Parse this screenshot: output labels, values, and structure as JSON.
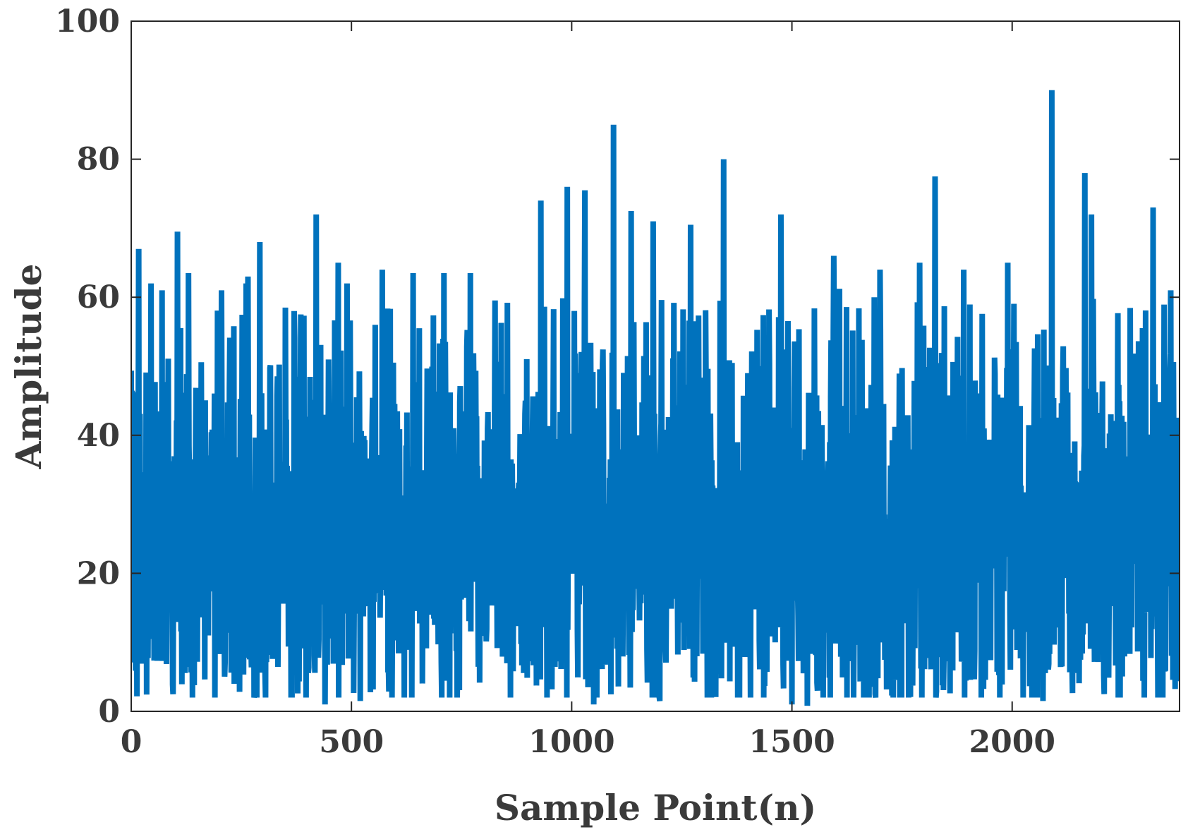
{
  "chart_data": {
    "type": "line",
    "title": "",
    "xlabel": "Sample Point(n)",
    "ylabel": "Amplitude",
    "xlim": [
      0,
      2380
    ],
    "ylim": [
      0,
      100
    ],
    "xticks": [
      0,
      500,
      1000,
      1500,
      2000
    ],
    "yticks": [
      0,
      20,
      40,
      60,
      80,
      100
    ],
    "xtick_labels": [
      "0",
      "500",
      "1000",
      "1500",
      "2000"
    ],
    "ytick_labels": [
      "0",
      "20",
      "40",
      "60",
      "80",
      "100"
    ],
    "grid": false,
    "box": true,
    "series": [
      {
        "color": "#0072BD",
        "n_points": 2380,
        "mean": 26,
        "typical_range": [
          8,
          46
        ],
        "peaks": [
          {
            "x": 17,
            "y": 67
          },
          {
            "x": 45,
            "y": 62
          },
          {
            "x": 70,
            "y": 61
          },
          {
            "x": 105,
            "y": 69.5
          },
          {
            "x": 130,
            "y": 63.5
          },
          {
            "x": 205,
            "y": 61
          },
          {
            "x": 265,
            "y": 63
          },
          {
            "x": 292,
            "y": 68
          },
          {
            "x": 370,
            "y": 58
          },
          {
            "x": 420,
            "y": 72
          },
          {
            "x": 470,
            "y": 65
          },
          {
            "x": 570,
            "y": 64
          },
          {
            "x": 640,
            "y": 63.5
          },
          {
            "x": 710,
            "y": 63.5
          },
          {
            "x": 770,
            "y": 63.5
          },
          {
            "x": 930,
            "y": 74
          },
          {
            "x": 990,
            "y": 76
          },
          {
            "x": 1030,
            "y": 75.5
          },
          {
            "x": 1095,
            "y": 85
          },
          {
            "x": 1135,
            "y": 72.5
          },
          {
            "x": 1185,
            "y": 71
          },
          {
            "x": 1270,
            "y": 70.5
          },
          {
            "x": 1345,
            "y": 80
          },
          {
            "x": 1475,
            "y": 72
          },
          {
            "x": 1500,
            "y": 75.5
          },
          {
            "x": 1595,
            "y": 66
          },
          {
            "x": 1700,
            "y": 64
          },
          {
            "x": 1790,
            "y": 65
          },
          {
            "x": 1825,
            "y": 77.5
          },
          {
            "x": 1890,
            "y": 64
          },
          {
            "x": 1990,
            "y": 65
          },
          {
            "x": 2090,
            "y": 90
          },
          {
            "x": 2165,
            "y": 78
          },
          {
            "x": 2180,
            "y": 72
          },
          {
            "x": 2320,
            "y": 73
          },
          {
            "x": 2360,
            "y": 61
          }
        ],
        "troughs": [
          {
            "x": 190,
            "y": 2
          },
          {
            "x": 280,
            "y": 2.5
          },
          {
            "x": 440,
            "y": 1
          },
          {
            "x": 520,
            "y": 1.5
          },
          {
            "x": 740,
            "y": 2
          },
          {
            "x": 1050,
            "y": 1
          },
          {
            "x": 1200,
            "y": 1.5
          },
          {
            "x": 1500,
            "y": 1
          },
          {
            "x": 1535,
            "y": 0.8
          },
          {
            "x": 1640,
            "y": 2
          },
          {
            "x": 1730,
            "y": 2
          },
          {
            "x": 1930,
            "y": 2
          },
          {
            "x": 2070,
            "y": 1.5
          },
          {
            "x": 2300,
            "y": 2
          }
        ]
      }
    ]
  }
}
